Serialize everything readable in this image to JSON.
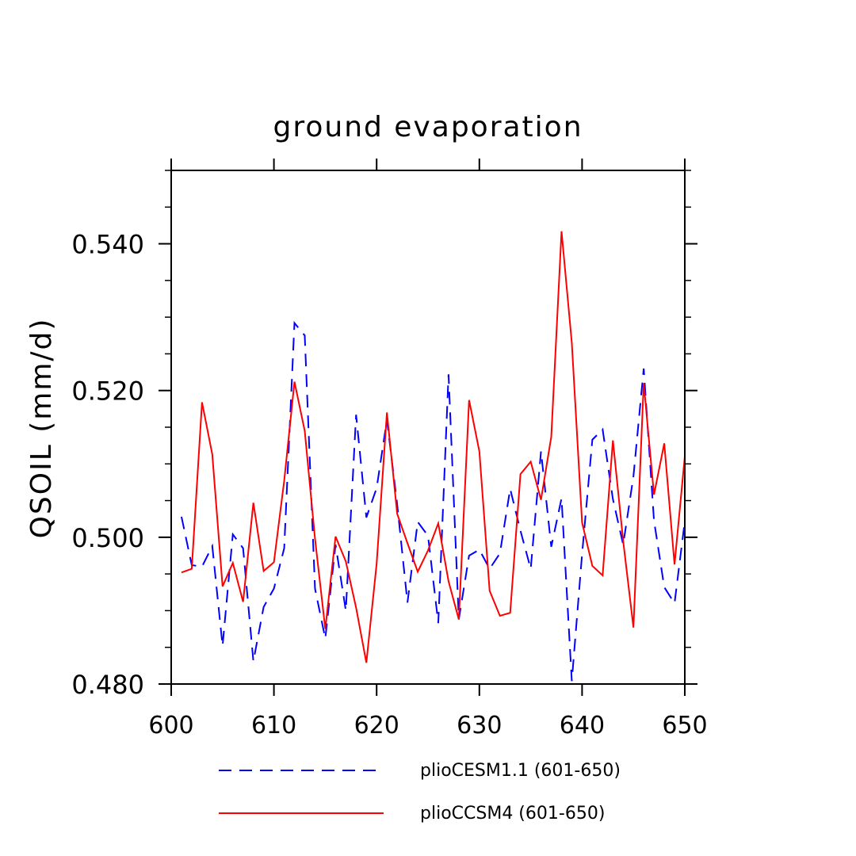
{
  "chart_data": {
    "type": "line",
    "title": "ground evaporation",
    "xlabel": "",
    "ylabel": "QSOIL  (mm/d)",
    "xlim": [
      600,
      650
    ],
    "ylim": [
      0.48,
      0.55
    ],
    "x_ticks": [
      600,
      610,
      620,
      630,
      640,
      650
    ],
    "x_tick_labels": [
      "600",
      "610",
      "620",
      "630",
      "640",
      "650"
    ],
    "y_ticks": [
      0.48,
      0.5,
      0.52,
      0.54
    ],
    "y_tick_labels": [
      "0.480",
      "0.500",
      "0.520",
      "0.540"
    ],
    "grid": false,
    "legend_position": "bottom",
    "x": [
      601,
      602,
      603,
      604,
      605,
      606,
      607,
      608,
      609,
      610,
      611,
      612,
      613,
      614,
      615,
      616,
      617,
      618,
      619,
      620,
      621,
      622,
      623,
      624,
      625,
      626,
      627,
      628,
      629,
      630,
      631,
      632,
      633,
      634,
      635,
      636,
      637,
      638,
      639,
      640,
      641,
      642,
      643,
      644,
      645,
      646,
      647,
      648,
      649,
      650
    ],
    "series": [
      {
        "name": "plioCESM1.1 (601-650)",
        "color": "#0000ff",
        "style": "dashed",
        "values": [
          0.5028,
          0.4962,
          0.496,
          0.4988,
          0.4852,
          0.5004,
          0.4985,
          0.4831,
          0.4905,
          0.493,
          0.4985,
          0.5292,
          0.5275,
          0.493,
          0.4862,
          0.499,
          0.49,
          0.5167,
          0.5027,
          0.5067,
          0.516,
          0.5045,
          0.4911,
          0.5021,
          0.5002,
          0.4883,
          0.5222,
          0.4888,
          0.4975,
          0.4983,
          0.4957,
          0.4978,
          0.5066,
          0.5009,
          0.4957,
          0.5117,
          0.4987,
          0.5053,
          0.4804,
          0.4977,
          0.5133,
          0.5147,
          0.5052,
          0.499,
          0.5083,
          0.523,
          0.5023,
          0.4932,
          0.491,
          0.5022
        ]
      },
      {
        "name": "plioCCSM4 (601-650)",
        "color": "#ff0000",
        "style": "solid",
        "values": [
          0.4952,
          0.4957,
          0.5184,
          0.5113,
          0.4933,
          0.4965,
          0.4912,
          0.5047,
          0.4954,
          0.4966,
          0.5077,
          0.5212,
          0.5145,
          0.4998,
          0.4875,
          0.5001,
          0.4967,
          0.4904,
          0.4829,
          0.4964,
          0.517,
          0.5032,
          0.4992,
          0.4953,
          0.4982,
          0.5019,
          0.494,
          0.4888,
          0.5187,
          0.5117,
          0.4927,
          0.4893,
          0.4897,
          0.5086,
          0.5103,
          0.5051,
          0.5137,
          0.5417,
          0.5265,
          0.502,
          0.4961,
          0.4948,
          0.5132,
          0.4995,
          0.4877,
          0.521,
          0.5058,
          0.5128,
          0.4963,
          0.511
        ]
      }
    ]
  }
}
